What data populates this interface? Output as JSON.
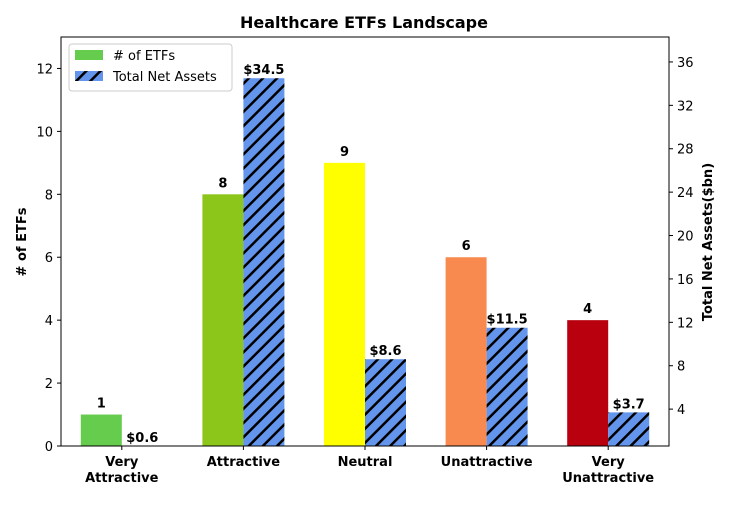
{
  "chart_data": {
    "type": "bar",
    "title": "Healthcare ETFs Landscape",
    "categories": [
      [
        "Very",
        "Attractive"
      ],
      [
        "Attractive"
      ],
      [
        "Neutral"
      ],
      [
        "Unattractive"
      ],
      [
        "Very",
        "Unattractive"
      ]
    ],
    "series": [
      {
        "name": "# of ETFs",
        "axis": "left",
        "values": [
          1,
          8,
          9,
          6,
          4
        ],
        "labels": [
          "1",
          "8",
          "9",
          "6",
          "4"
        ],
        "colors": [
          "#66cc4d",
          "#8cc61a",
          "#ffff00",
          "#f98a4f",
          "#b9000f"
        ]
      },
      {
        "name": "Total Net Assets",
        "axis": "right",
        "values": [
          0.6,
          34.5,
          8.6,
          11.5,
          3.7
        ],
        "labels": [
          "$0.6",
          "$34.5",
          "$8.6",
          "$11.5",
          "$3.7"
        ],
        "color": "#6495ed",
        "hatch": "diagonal"
      }
    ],
    "ylabel_left": "# of ETFs",
    "ylabel_right": "Total Net Assets($bn)",
    "ylim_left": [
      0,
      13
    ],
    "yticks_left": [
      0,
      2,
      4,
      6,
      8,
      10,
      12
    ],
    "ylim_right": [
      0.6,
      38.3
    ],
    "yticks_right": [
      4,
      8,
      12,
      16,
      20,
      24,
      28,
      32,
      36
    ],
    "legend": "top-left",
    "grid": false
  }
}
